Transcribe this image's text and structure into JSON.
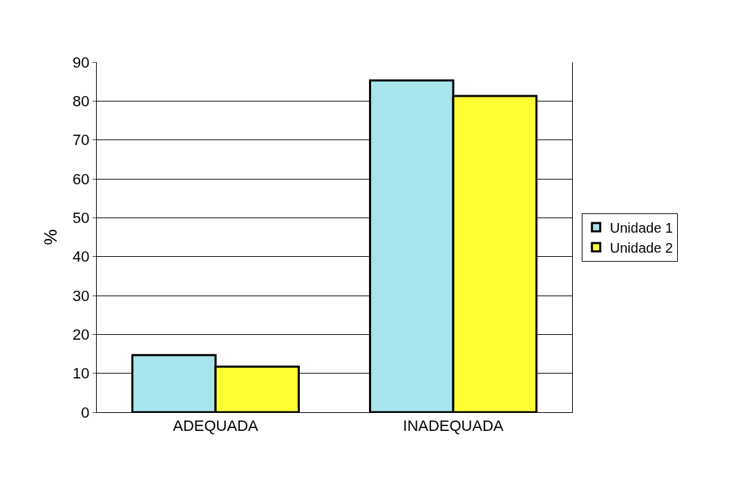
{
  "chart_data": {
    "type": "bar",
    "ylabel": "%",
    "categories": [
      "ADEQUADA",
      "INADEQUADA"
    ],
    "series": [
      {
        "name": "Unidade 1",
        "color": "#a8e4ec",
        "values": [
          14.7,
          85.3
        ]
      },
      {
        "name": "Unidade 2",
        "color": "#ffff33",
        "values": [
          11.7,
          81.3
        ]
      }
    ],
    "ylim": [
      0,
      90
    ],
    "yticks": [
      0,
      10,
      20,
      30,
      40,
      50,
      60,
      70,
      80,
      90
    ],
    "grid": "y",
    "legend": "right"
  }
}
